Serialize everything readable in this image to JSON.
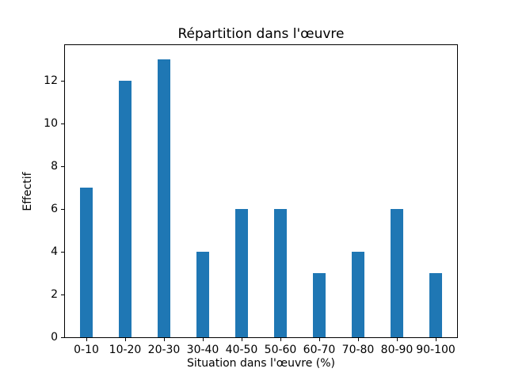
{
  "chart_data": {
    "type": "bar",
    "title": "Répartition dans l'œuvre",
    "xlabel": "Situation dans l'œuvre (%)",
    "ylabel": "Effectif",
    "categories": [
      "0-10",
      "10-20",
      "20-30",
      "30-40",
      "40-50",
      "50-60",
      "60-70",
      "70-80",
      "80-90",
      "90-100"
    ],
    "values": [
      7,
      12,
      13,
      4,
      6,
      6,
      3,
      4,
      6,
      3
    ],
    "yticks": [
      0,
      2,
      4,
      6,
      8,
      10,
      12
    ],
    "ylim": [
      0,
      13.65
    ],
    "bar_color": "#1f77b4",
    "background_color": "#ffffff",
    "grid": false,
    "legend": "none"
  }
}
